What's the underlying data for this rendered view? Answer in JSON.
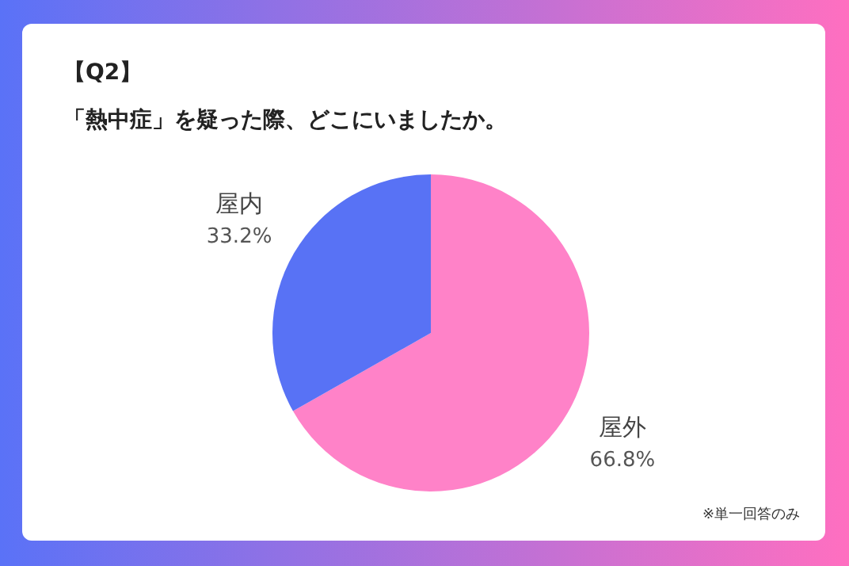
{
  "chart_data": {
    "type": "pie",
    "title": "【Q2】",
    "subtitle": "「熱中症」を疑った際、どこにいましたか。",
    "categories": [
      "屋外",
      "屋内"
    ],
    "values": [
      66.8,
      33.2
    ],
    "colors": [
      "#ff82c8",
      "#5872f5"
    ],
    "value_labels": [
      "66.8%",
      "33.2%"
    ],
    "legend": false,
    "annotations": [
      "※単一回答のみ"
    ]
  }
}
